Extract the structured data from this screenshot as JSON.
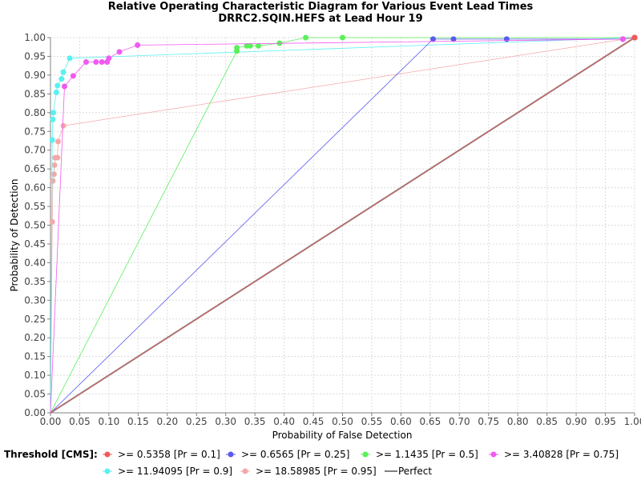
{
  "chart_data": {
    "type": "line",
    "title": "Relative Operating Characteristic Diagram for Various Event Lead Times",
    "subtitle": "DRRC2.SQIN.HEFS at Lead Hour 19",
    "xlabel": "Probability of False Detection",
    "ylabel": "Probability of Detection",
    "xlim": [
      0,
      1
    ],
    "ylim": [
      0,
      1
    ],
    "xticks": [
      "0.00",
      "0.05",
      "0.10",
      "0.15",
      "0.20",
      "0.25",
      "0.30",
      "0.35",
      "0.40",
      "0.45",
      "0.50",
      "0.55",
      "0.60",
      "0.65",
      "0.70",
      "0.75",
      "0.80",
      "0.85",
      "0.90",
      "0.95",
      "1.00"
    ],
    "yticks": [
      "0.00",
      "0.05",
      "0.10",
      "0.15",
      "0.20",
      "0.25",
      "0.30",
      "0.35",
      "0.40",
      "0.45",
      "0.50",
      "0.55",
      "0.60",
      "0.65",
      "0.70",
      "0.75",
      "0.80",
      "0.85",
      "0.90",
      "0.95",
      "1.00"
    ],
    "grid": true,
    "legend_title": "Threshold [CMS]:",
    "legend_position": "bottom",
    "series": [
      {
        "name": ">= 0.5358 [Pr = 0.1]",
        "color": "#f05a5a",
        "x": [
          0,
          1,
          1
        ],
        "y": [
          0,
          1,
          1
        ]
      },
      {
        "name": ">= 0.6565 [Pr = 0.25]",
        "color": "#5a5af0",
        "x": [
          0,
          0.655,
          0.69,
          0.781,
          0.98,
          1
        ],
        "y": [
          0,
          0.996,
          0.996,
          0.996,
          0.996,
          1
        ]
      },
      {
        "name": ">= 1.1435 [Pr = 0.5]",
        "color": "#5af05a",
        "x": [
          0,
          0.319,
          0.319,
          0.336,
          0.342,
          0.356,
          0.392,
          0.437,
          0.5,
          1
        ],
        "y": [
          0,
          0.964,
          0.973,
          0.978,
          0.978,
          0.978,
          0.985,
          1.0,
          1.0,
          1.0
        ]
      },
      {
        "name": ">= 3.40828 [Pr = 0.75]",
        "color": "#f05af0",
        "x": [
          0,
          0.024,
          0.039,
          0.061,
          0.078,
          0.088,
          0.097,
          0.1,
          0.118,
          0.149,
          0.98,
          1
        ],
        "y": [
          0,
          0.87,
          0.898,
          0.935,
          0.935,
          0.935,
          0.935,
          0.945,
          0.962,
          0.98,
          0.996,
          1.0
        ]
      },
      {
        "name": ">= 11.94095 [Pr = 0.9]",
        "color": "#5af0f0",
        "x": [
          0,
          0.003,
          0.004,
          0.005,
          0.01,
          0.012,
          0.019,
          0.022,
          0.033,
          1
        ],
        "y": [
          0,
          0.727,
          0.782,
          0.8,
          0.854,
          0.872,
          0.89,
          0.908,
          0.945,
          1.0
        ]
      },
      {
        "name": ">= 18.58985 [Pr = 0.95]",
        "color": "#f5a8a8",
        "x": [
          0,
          0.003,
          0.004,
          0.006,
          0.007,
          0.008,
          0.012,
          0.013,
          0.022,
          1
        ],
        "y": [
          0,
          0.509,
          0.618,
          0.636,
          0.66,
          0.68,
          0.68,
          0.723,
          0.765,
          1.0
        ]
      },
      {
        "name": "Perfect",
        "color": "#808080",
        "x": [
          0,
          1
        ],
        "y": [
          0,
          1
        ]
      }
    ]
  }
}
